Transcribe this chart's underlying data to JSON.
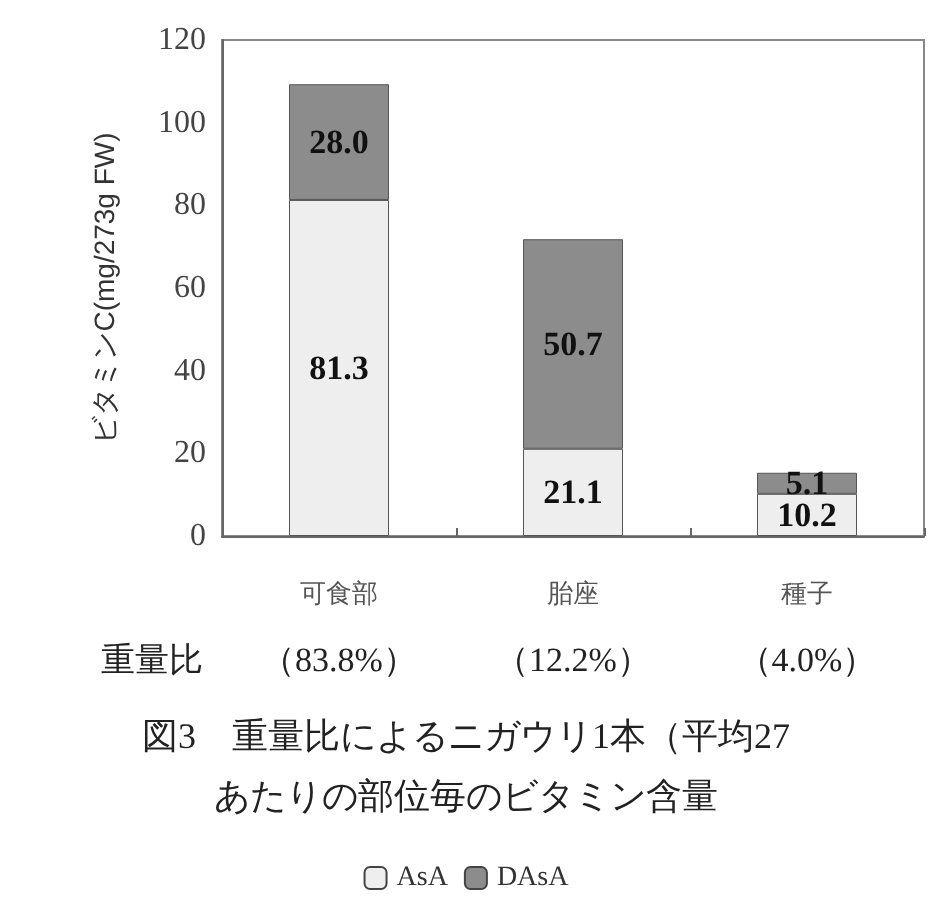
{
  "chart_data": {
    "type": "bar",
    "stacked": true,
    "title": "図3　重量比によるニガウリ1本（平均27",
    "subtitle": "あたりの部位毎のビタミン含量",
    "ylabel": "ビタミンC(mg/273g FW)",
    "categories": [
      "可食部",
      "胎座",
      "種子"
    ],
    "series": [
      {
        "name": "AsA",
        "color": "#eeeeee",
        "values": [
          81.3,
          21.1,
          10.2
        ],
        "value_labels": [
          "81.3",
          "21.1",
          "10.2"
        ]
      },
      {
        "name": "DAsA",
        "color": "#8c8c8c",
        "values": [
          28.0,
          50.7,
          5.1
        ],
        "value_labels": [
          "28.0",
          "50.7",
          "5.1"
        ]
      }
    ],
    "ylim": [
      0,
      120
    ],
    "yticks": [
      0,
      20,
      40,
      60,
      80,
      100,
      120
    ],
    "grid": false,
    "legend": "bottom",
    "annotations": [
      "重量比",
      "（83.8%）",
      "（12.2%）",
      "（4.0%）"
    ]
  }
}
